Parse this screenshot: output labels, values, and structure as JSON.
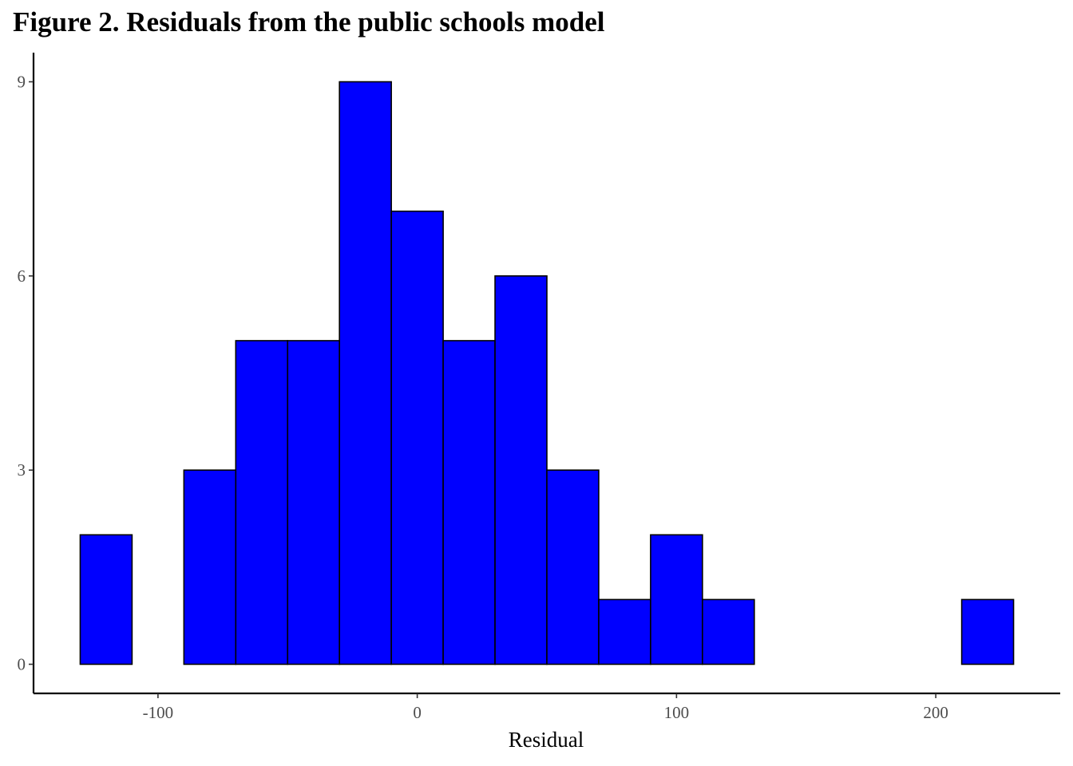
{
  "page": {
    "title": "Figure 2.  Residuals from the public schools model"
  },
  "chart_data": {
    "type": "bar",
    "subtype": "histogram",
    "title": "",
    "xlabel": "Residual",
    "ylabel": "",
    "bin_width": 20,
    "bins": [
      {
        "x0": -130,
        "x1": -110,
        "count": 2
      },
      {
        "x0": -110,
        "x1": -90,
        "count": 0
      },
      {
        "x0": -90,
        "x1": -70,
        "count": 3
      },
      {
        "x0": -70,
        "x1": -50,
        "count": 5
      },
      {
        "x0": -50,
        "x1": -30,
        "count": 5
      },
      {
        "x0": -30,
        "x1": -10,
        "count": 9
      },
      {
        "x0": -10,
        "x1": 10,
        "count": 7
      },
      {
        "x0": 10,
        "x1": 30,
        "count": 5
      },
      {
        "x0": 30,
        "x1": 50,
        "count": 6
      },
      {
        "x0": 50,
        "x1": 70,
        "count": 3
      },
      {
        "x0": 70,
        "x1": 90,
        "count": 1
      },
      {
        "x0": 90,
        "x1": 110,
        "count": 2
      },
      {
        "x0": 110,
        "x1": 130,
        "count": 1
      },
      {
        "x0": 130,
        "x1": 150,
        "count": 0
      },
      {
        "x0": 150,
        "x1": 170,
        "count": 0
      },
      {
        "x0": 170,
        "x1": 190,
        "count": 0
      },
      {
        "x0": 190,
        "x1": 210,
        "count": 0
      },
      {
        "x0": 210,
        "x1": 230,
        "count": 1
      }
    ],
    "xlim": [
      -148,
      248
    ],
    "ylim": [
      -0.45,
      9.45
    ],
    "x_ticks": [
      -100,
      0,
      100,
      200
    ],
    "x_tick_labels": [
      "-100",
      "0",
      "100",
      "200"
    ],
    "y_ticks": [
      0,
      3,
      6,
      9
    ],
    "y_tick_labels": [
      "0",
      "3",
      "6",
      "9"
    ],
    "grid": false,
    "legend": "none",
    "colors": {
      "fill": "#0000ff",
      "outline": "#000000",
      "axis": "#000000",
      "tick_text": "#4d4d4d"
    }
  }
}
